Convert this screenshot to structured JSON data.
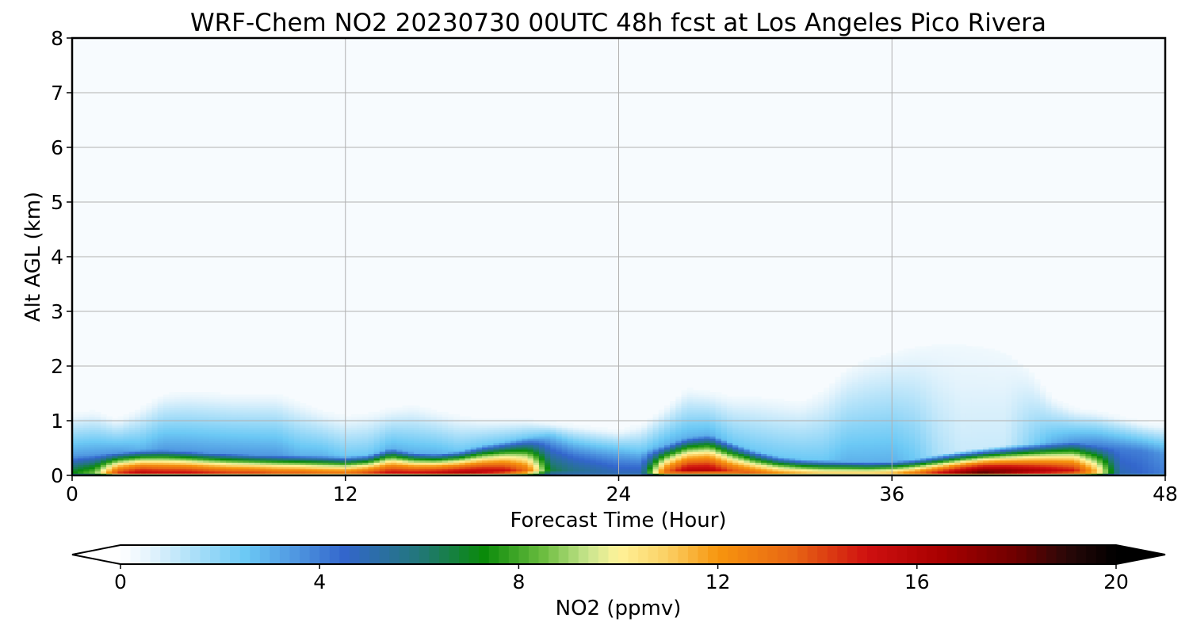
{
  "chart_data": {
    "type": "heatmap",
    "title": "WRF-Chem NO2  20230730 00UTC 48h fcst at Los Angeles Pico Rivera",
    "xlabel": "Forecast Time (Hour)",
    "ylabel": "Alt AGL (km)",
    "xlim": [
      0,
      48
    ],
    "ylim": [
      0,
      8
    ],
    "xticks": [
      0,
      12,
      24,
      36,
      48
    ],
    "yticks": [
      0,
      1,
      2,
      3,
      4,
      5,
      6,
      7,
      8
    ],
    "grid": true,
    "colorbar": {
      "label": "NO2  (ppmv)",
      "range": [
        0,
        20
      ],
      "ticks": [
        0,
        4,
        8,
        12,
        16,
        20
      ],
      "extend": "both",
      "orientation": "horizontal"
    },
    "colormap_stops": [
      {
        "value": 0,
        "color": "#ffffff"
      },
      {
        "value": 0.6,
        "color": "#e3f3fc"
      },
      {
        "value": 2.5,
        "color": "#6cc9f5"
      },
      {
        "value": 4.5,
        "color": "#3366cc"
      },
      {
        "value": 6.0,
        "color": "#22777a"
      },
      {
        "value": 7.3,
        "color": "#0a8a0a"
      },
      {
        "value": 8.5,
        "color": "#6cbd40"
      },
      {
        "value": 9.4,
        "color": "#c9e58e"
      },
      {
        "value": 10.0,
        "color": "#fff39a"
      },
      {
        "value": 11.0,
        "color": "#fbcf62"
      },
      {
        "value": 12.0,
        "color": "#f7950e"
      },
      {
        "value": 13.5,
        "color": "#e86614"
      },
      {
        "value": 15.0,
        "color": "#cf1010"
      },
      {
        "value": 16.5,
        "color": "#a80000"
      },
      {
        "value": 18.0,
        "color": "#6e0000"
      },
      {
        "value": 19.0,
        "color": "#2a0808"
      },
      {
        "value": 20.0,
        "color": "#000000"
      }
    ],
    "field_profile": {
      "hours": [
        0,
        1,
        2,
        3,
        4,
        5,
        6,
        7,
        8,
        9,
        10,
        11,
        12,
        13,
        14,
        15,
        16,
        17,
        18,
        19,
        20,
        21,
        22,
        23,
        24,
        25,
        26,
        27,
        28,
        29,
        30,
        31,
        32,
        33,
        34,
        35,
        36,
        37,
        38,
        39,
        40,
        41,
        42,
        43,
        44,
        45,
        46,
        47,
        48
      ],
      "surface_no2_ppmv": [
        7.5,
        9,
        15,
        16.5,
        16,
        16,
        15.5,
        15,
        15,
        14.5,
        14.5,
        14,
        14,
        15,
        16,
        16,
        16.5,
        17,
        17,
        16.5,
        14,
        7,
        6,
        5.5,
        5,
        5,
        14,
        17,
        17,
        15,
        14,
        13,
        12.5,
        12,
        12,
        12,
        12.5,
        14,
        16,
        18,
        19.5,
        19,
        18,
        17,
        16,
        12,
        5,
        4.5,
        4
      ],
      "mixed_layer_top_km": [
        0.35,
        0.38,
        0.42,
        0.47,
        0.47,
        0.45,
        0.42,
        0.4,
        0.38,
        0.37,
        0.37,
        0.36,
        0.35,
        0.38,
        0.5,
        0.42,
        0.4,
        0.45,
        0.55,
        0.62,
        0.7,
        0.75,
        0.62,
        0.55,
        0.5,
        0.45,
        0.55,
        0.7,
        0.75,
        0.6,
        0.45,
        0.35,
        0.3,
        0.28,
        0.26,
        0.25,
        0.26,
        0.3,
        0.38,
        0.45,
        0.5,
        0.55,
        0.58,
        0.6,
        0.62,
        0.55,
        0.5,
        0.45,
        0.4
      ],
      "background_plume_top_km": [
        1.1,
        1.15,
        1.0,
        1.2,
        1.45,
        1.5,
        1.48,
        1.45,
        1.45,
        1.45,
        1.3,
        1.15,
        1.05,
        1.1,
        1.2,
        1.25,
        1.15,
        1.05,
        1.0,
        1.0,
        1.0,
        0.95,
        0.9,
        0.85,
        0.8,
        0.9,
        1.2,
        1.55,
        1.5,
        1.4,
        1.4,
        1.35,
        1.3,
        1.5,
        1.9,
        2.1,
        2.2,
        2.3,
        2.35,
        2.35,
        2.3,
        2.2,
        1.9,
        1.4,
        1.2,
        1.15,
        1.05,
        0.95,
        0.9
      ],
      "background_no2_ppmv": [
        3.5,
        3.5,
        3.5,
        3,
        3.5,
        3.5,
        3.5,
        3.5,
        3.5,
        3.5,
        3,
        3,
        2.5,
        2.5,
        3,
        3,
        3,
        2.5,
        2.5,
        2.5,
        2.5,
        2.5,
        2.5,
        2.5,
        2.5,
        2.5,
        3,
        3,
        3,
        2.5,
        2.5,
        2.5,
        2.5,
        2.5,
        3,
        3,
        3,
        2.5,
        1.5,
        1,
        1,
        1,
        2,
        3,
        3.5,
        4,
        4,
        4,
        3.5
      ]
    }
  }
}
